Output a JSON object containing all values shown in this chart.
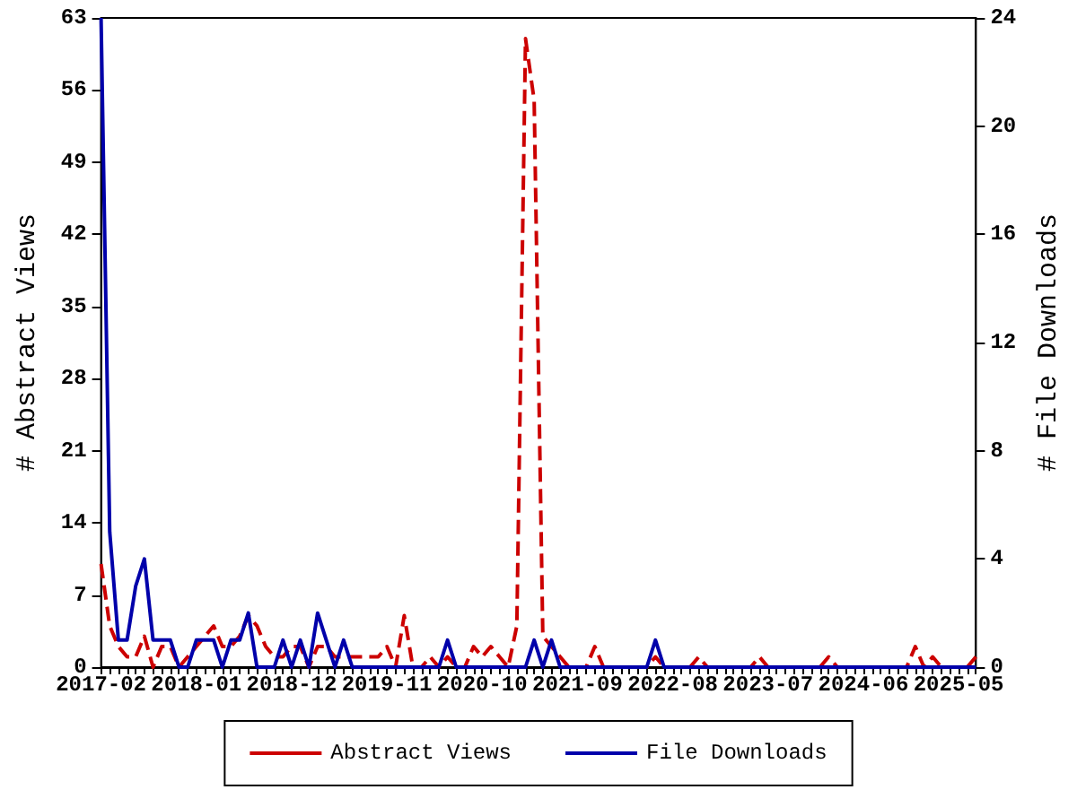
{
  "chart_data": {
    "type": "line",
    "ylabel": "# Abstract Views",
    "y2label": "# File Downloads",
    "categories": [
      "2017-02",
      null,
      null,
      null,
      null,
      null,
      null,
      null,
      null,
      null,
      null,
      "2018-01",
      null,
      null,
      null,
      null,
      null,
      null,
      null,
      null,
      null,
      null,
      "2018-12",
      null,
      null,
      null,
      null,
      null,
      null,
      null,
      null,
      null,
      null,
      "2019-11",
      null,
      null,
      null,
      null,
      null,
      null,
      null,
      null,
      null,
      null,
      "2020-10",
      null,
      null,
      null,
      null,
      null,
      null,
      null,
      null,
      null,
      null,
      "2021-09",
      null,
      null,
      null,
      null,
      null,
      null,
      null,
      null,
      null,
      null,
      "2022-08",
      null,
      null,
      null,
      null,
      null,
      null,
      null,
      null,
      null,
      null,
      "2023-07",
      null,
      null,
      null,
      null,
      null,
      null,
      null,
      null,
      null,
      null,
      "2024-06",
      null,
      null,
      null,
      null,
      null,
      null,
      null,
      null,
      null,
      null,
      "2025-05",
      null,
      null
    ],
    "series": [
      {
        "name": "Abstract Views",
        "color": "#cc0000",
        "line_style": "dashed",
        "values": [
          10,
          4,
          2,
          1,
          1,
          3,
          0,
          2,
          2,
          0,
          1,
          2,
          3,
          4,
          2,
          2,
          3,
          5,
          4,
          2,
          1,
          1,
          2,
          2,
          0,
          2,
          2,
          1,
          1,
          1,
          1,
          1,
          1,
          2,
          0,
          5,
          0,
          0,
          1,
          0,
          1,
          0,
          0,
          2,
          1,
          2,
          1,
          0,
          4,
          61,
          55,
          3,
          2,
          1,
          0,
          0,
          0,
          2,
          0,
          0,
          0,
          0,
          0,
          0,
          1,
          0,
          0,
          0,
          0,
          1,
          0,
          0,
          0,
          0,
          0,
          0,
          1,
          0,
          0,
          0,
          0,
          0,
          0,
          0,
          1,
          0,
          0,
          0,
          0,
          0,
          0,
          0,
          0,
          0,
          2,
          0,
          1,
          0,
          0,
          0,
          0,
          1
        ]
      },
      {
        "name": "File Downloads",
        "color": "#0000aa",
        "line_style": "solid",
        "axis": "y2",
        "values": [
          24,
          5,
          1,
          1,
          3,
          4,
          1,
          1,
          1,
          0,
          0,
          1,
          1,
          1,
          0,
          1,
          1,
          2,
          0,
          0,
          0,
          1,
          0,
          1,
          0,
          2,
          1,
          0,
          1,
          0,
          0,
          0,
          0,
          0,
          0,
          0,
          0,
          0,
          0,
          0,
          1,
          0,
          0,
          0,
          0,
          0,
          0,
          0,
          0,
          0,
          1,
          0,
          1,
          0,
          0,
          0,
          0,
          0,
          0,
          0,
          0,
          0,
          0,
          0,
          1,
          0,
          0,
          0,
          0,
          0,
          0,
          0,
          0,
          0,
          0,
          0,
          0,
          0,
          0,
          0,
          0,
          0,
          0,
          0,
          0,
          0,
          0,
          0,
          0,
          0,
          0,
          0,
          0,
          0,
          0,
          0,
          0,
          0,
          0,
          0,
          0,
          0
        ]
      }
    ],
    "ylim": [
      0,
      63
    ],
    "yticks": [
      0,
      7,
      14,
      21,
      28,
      35,
      42,
      49,
      56,
      63
    ],
    "y2lim": [
      0,
      24
    ],
    "y2ticks": [
      0,
      4,
      8,
      12,
      16,
      20,
      24
    ],
    "grid": false,
    "legend": "bottom",
    "marker": "none"
  }
}
